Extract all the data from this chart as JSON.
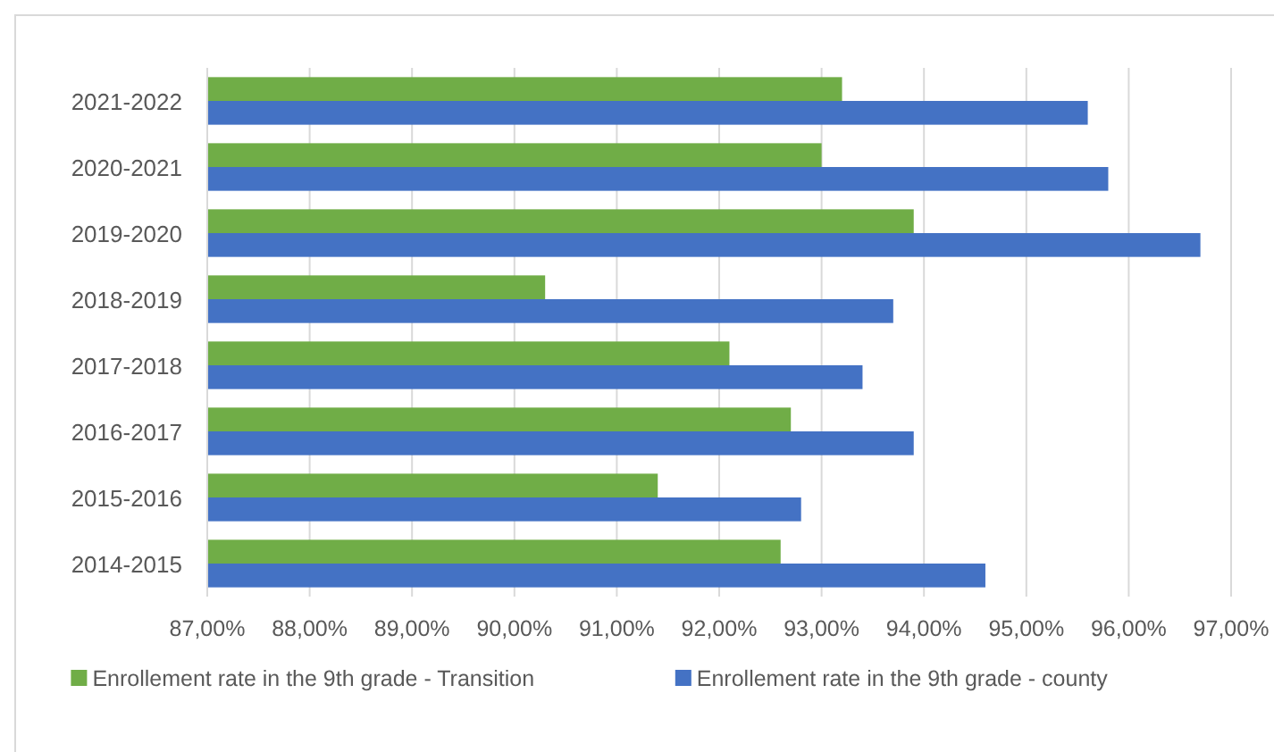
{
  "chart_data": {
    "type": "bar",
    "orientation": "horizontal",
    "categories": [
      "2021-2022",
      "2020-2021",
      "2019-2020",
      "2018-2019",
      "2017-2018",
      "2016-2017",
      "2015-2016",
      "2014-2015"
    ],
    "series": [
      {
        "name": "Enrollement rate in the 9th grade - Transition",
        "color": "#70ad47",
        "values": [
          93.2,
          93.0,
          93.9,
          90.3,
          92.1,
          92.7,
          91.4,
          92.6
        ]
      },
      {
        "name": "Enrollement rate in the 9th grade - county",
        "color": "#4472c4",
        "values": [
          95.6,
          95.8,
          96.7,
          93.7,
          93.4,
          93.9,
          92.8,
          94.6
        ]
      }
    ],
    "xlim": [
      87,
      97
    ],
    "xticks": [
      {
        "value": 87,
        "label": "87,00%"
      },
      {
        "value": 88,
        "label": "88,00%"
      },
      {
        "value": 89,
        "label": "89,00%"
      },
      {
        "value": 90,
        "label": "90,00%"
      },
      {
        "value": 91,
        "label": "91,00%"
      },
      {
        "value": 92,
        "label": "92,00%"
      },
      {
        "value": 93,
        "label": "93,00%"
      },
      {
        "value": 94,
        "label": "94,00%"
      },
      {
        "value": 95,
        "label": "95,00%"
      },
      {
        "value": 96,
        "label": "96,00%"
      },
      {
        "value": 97,
        "label": "97,00%"
      }
    ],
    "grid": "x",
    "legend": "bottom"
  }
}
